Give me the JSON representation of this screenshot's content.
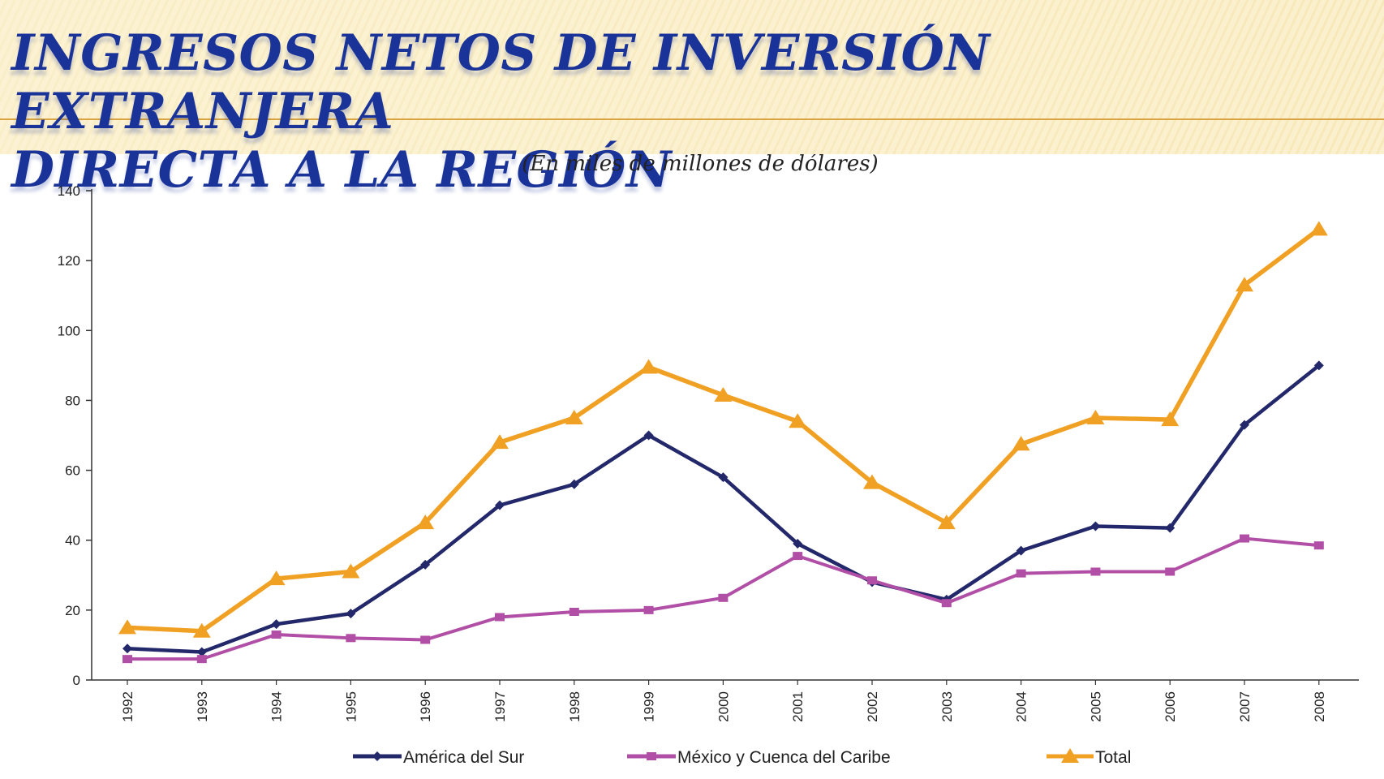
{
  "header": {
    "title_line1": "INGRESOS NETOS DE INVERSIÓN EXTRANJERA",
    "title_line2": "DIRECTA A LA REGIÓN",
    "title_color": "#1a3399",
    "band_color": "#fbf1cf",
    "rule_color": "#d9a441"
  },
  "chart_data": {
    "type": "line",
    "title": "",
    "subtitle": "(En miles de millones de dólares)",
    "xlabel": "",
    "ylabel": "",
    "ylim": [
      0,
      140
    ],
    "yticks": [
      0,
      20,
      40,
      60,
      80,
      100,
      120,
      140
    ],
    "grid": false,
    "legend_position": "bottom",
    "categories": [
      "1992",
      "1993",
      "1994",
      "1995",
      "1996",
      "1997",
      "1998",
      "1999",
      "2000",
      "2001",
      "2002",
      "2003",
      "2004",
      "2005",
      "2006",
      "2007",
      "2008"
    ],
    "series": [
      {
        "name": "América del Sur",
        "color": "#23286b",
        "marker": "diamond",
        "values": [
          9,
          8,
          16,
          19,
          33,
          50,
          56,
          70,
          58,
          39,
          28,
          23,
          37,
          44,
          43.5,
          73,
          90
        ]
      },
      {
        "name": "México y Cuenca del Caribe",
        "color": "#b14fa6",
        "marker": "square",
        "values": [
          6,
          6,
          13,
          12,
          11.5,
          18,
          19.5,
          20,
          23.5,
          35.5,
          28.5,
          22,
          30.5,
          31,
          31,
          40.5,
          38.5
        ]
      },
      {
        "name": "Total",
        "color": "#f0a023",
        "marker": "triangle",
        "values": [
          15,
          14,
          29,
          31,
          45,
          68,
          75,
          89.5,
          81.5,
          74,
          56.5,
          45,
          67.5,
          75,
          74.5,
          113,
          129
        ]
      }
    ]
  }
}
